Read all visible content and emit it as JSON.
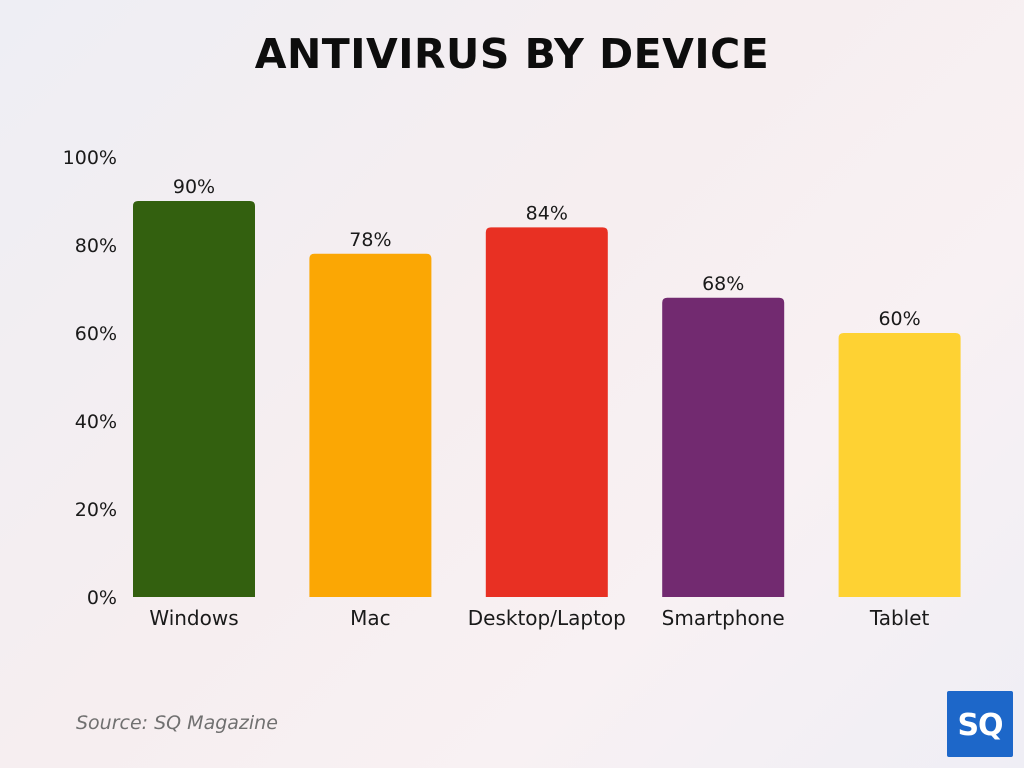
{
  "chart_data": {
    "type": "bar",
    "title": "ANTIVIRUS BY DEVICE",
    "categories": [
      "Windows",
      "Mac",
      "Desktop/Laptop",
      "Smartphone",
      "Tablet"
    ],
    "values": [
      90,
      78,
      84,
      68,
      60
    ],
    "value_labels": [
      "90%",
      "78%",
      "84%",
      "68%",
      "60%"
    ],
    "colors": [
      "#33600f",
      "#fba704",
      "#e83023",
      "#722a70",
      "#fed233"
    ],
    "ylim": [
      0,
      100
    ],
    "yticks": [
      0,
      20,
      40,
      60,
      80,
      100
    ],
    "ytick_labels": [
      "0%",
      "20%",
      "40%",
      "60%",
      "80%",
      "100%"
    ],
    "xlabel": "",
    "ylabel": "",
    "grid": false,
    "legend": "none"
  },
  "source": "Source: SQ Magazine",
  "logo": {
    "text": "SQ",
    "color": "#1d67c9"
  }
}
